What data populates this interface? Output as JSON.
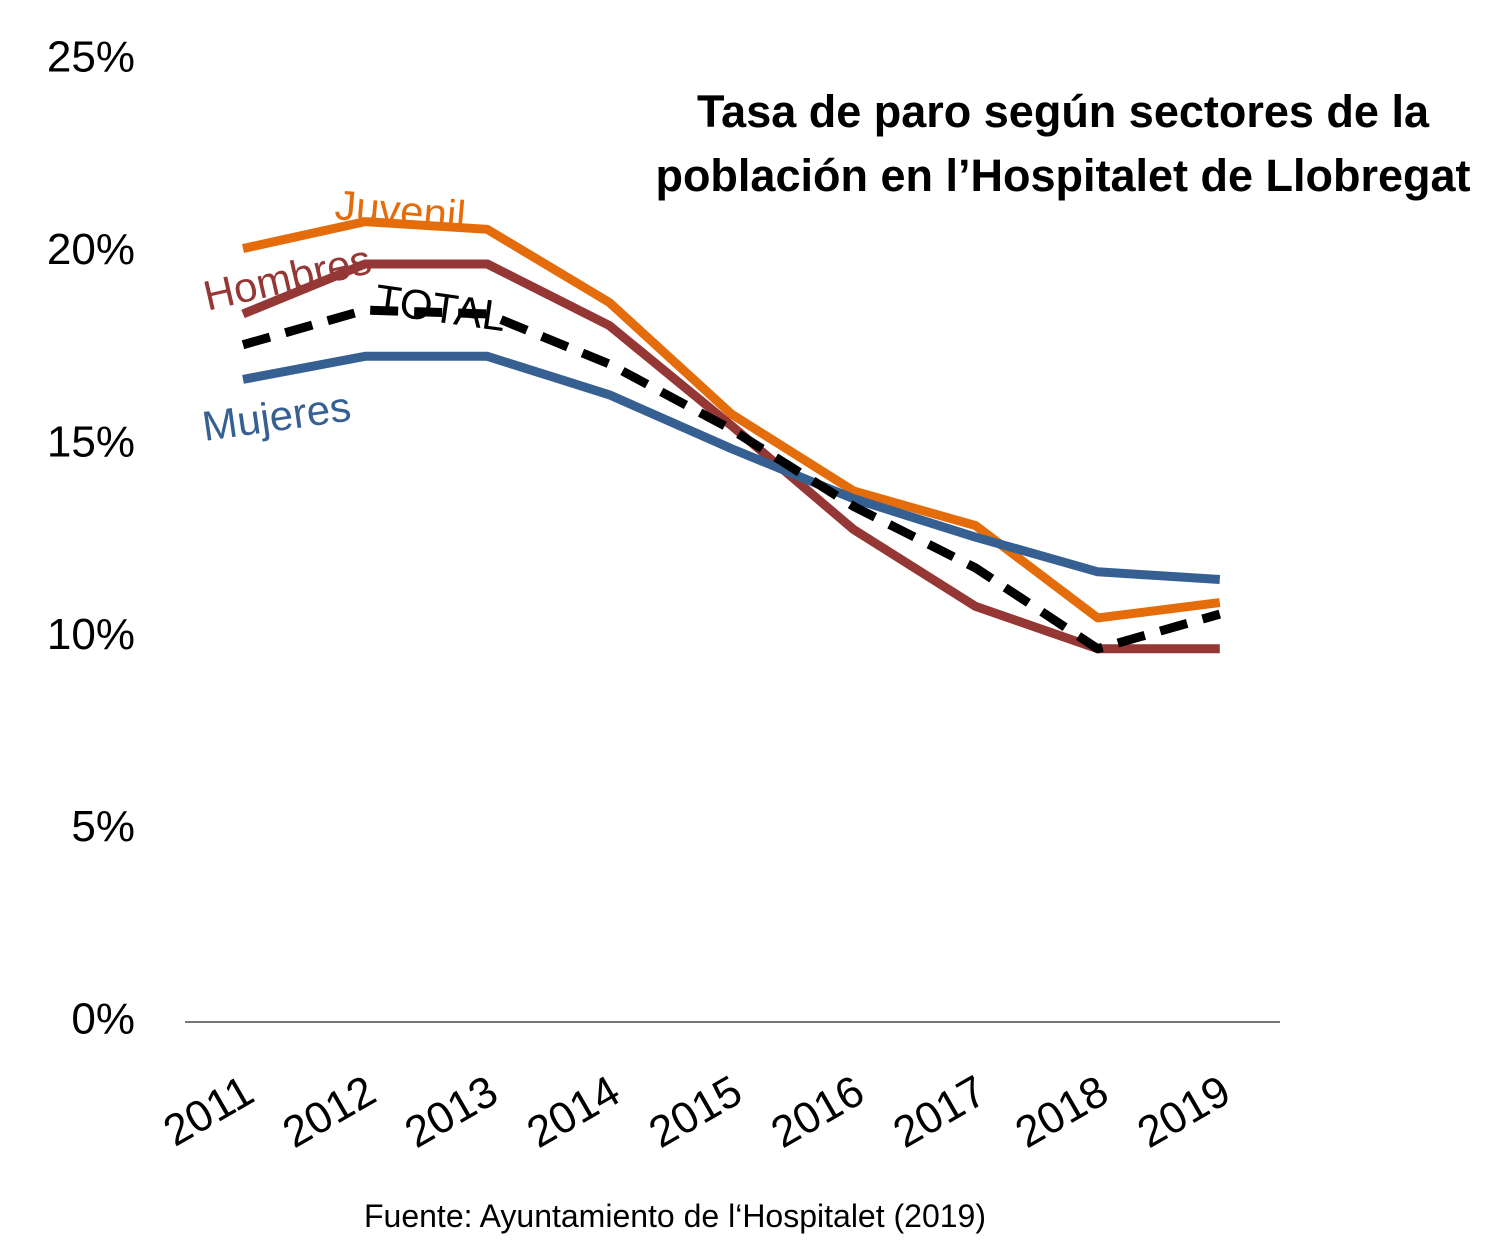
{
  "chart_data": {
    "type": "line",
    "title": "Tasa de paro según sectores de la población en l’Hospitalet de Llobregat",
    "source": "Fuente: Ayuntamiento de l‘Hospitalet (2019)",
    "categories": [
      "2011",
      "2012",
      "2013",
      "2014",
      "2015",
      "2016",
      "2017",
      "2018",
      "2019"
    ],
    "series": [
      {
        "name": "Juvenil",
        "color": "#e46c0a",
        "dashed": false,
        "values": [
          20.1,
          20.8,
          20.6,
          18.7,
          15.8,
          13.8,
          12.9,
          10.5,
          10.9
        ]
      },
      {
        "name": "Hombres",
        "color": "#953735",
        "dashed": false,
        "values": [
          18.4,
          19.7,
          19.7,
          18.1,
          15.5,
          12.8,
          10.8,
          9.7,
          9.7
        ]
      },
      {
        "name": "Mujeres",
        "color": "#376092",
        "dashed": false,
        "values": [
          16.7,
          17.3,
          17.3,
          16.3,
          14.9,
          13.6,
          12.6,
          11.7,
          11.5
        ]
      },
      {
        "name": "TOTAL",
        "color": "#000000",
        "dashed": true,
        "values": [
          17.6,
          18.5,
          18.4,
          17.1,
          15.4,
          13.4,
          11.8,
          9.7,
          10.6
        ]
      }
    ],
    "ylim": [
      0,
      25
    ],
    "yticks": [
      {
        "value": 0,
        "label": "0%"
      },
      {
        "value": 5,
        "label": "5%"
      },
      {
        "value": 10,
        "label": "10%"
      },
      {
        "value": 15,
        "label": "15%"
      },
      {
        "value": 20,
        "label": "20%"
      },
      {
        "value": 25,
        "label": "25%"
      }
    ],
    "grid": false
  }
}
